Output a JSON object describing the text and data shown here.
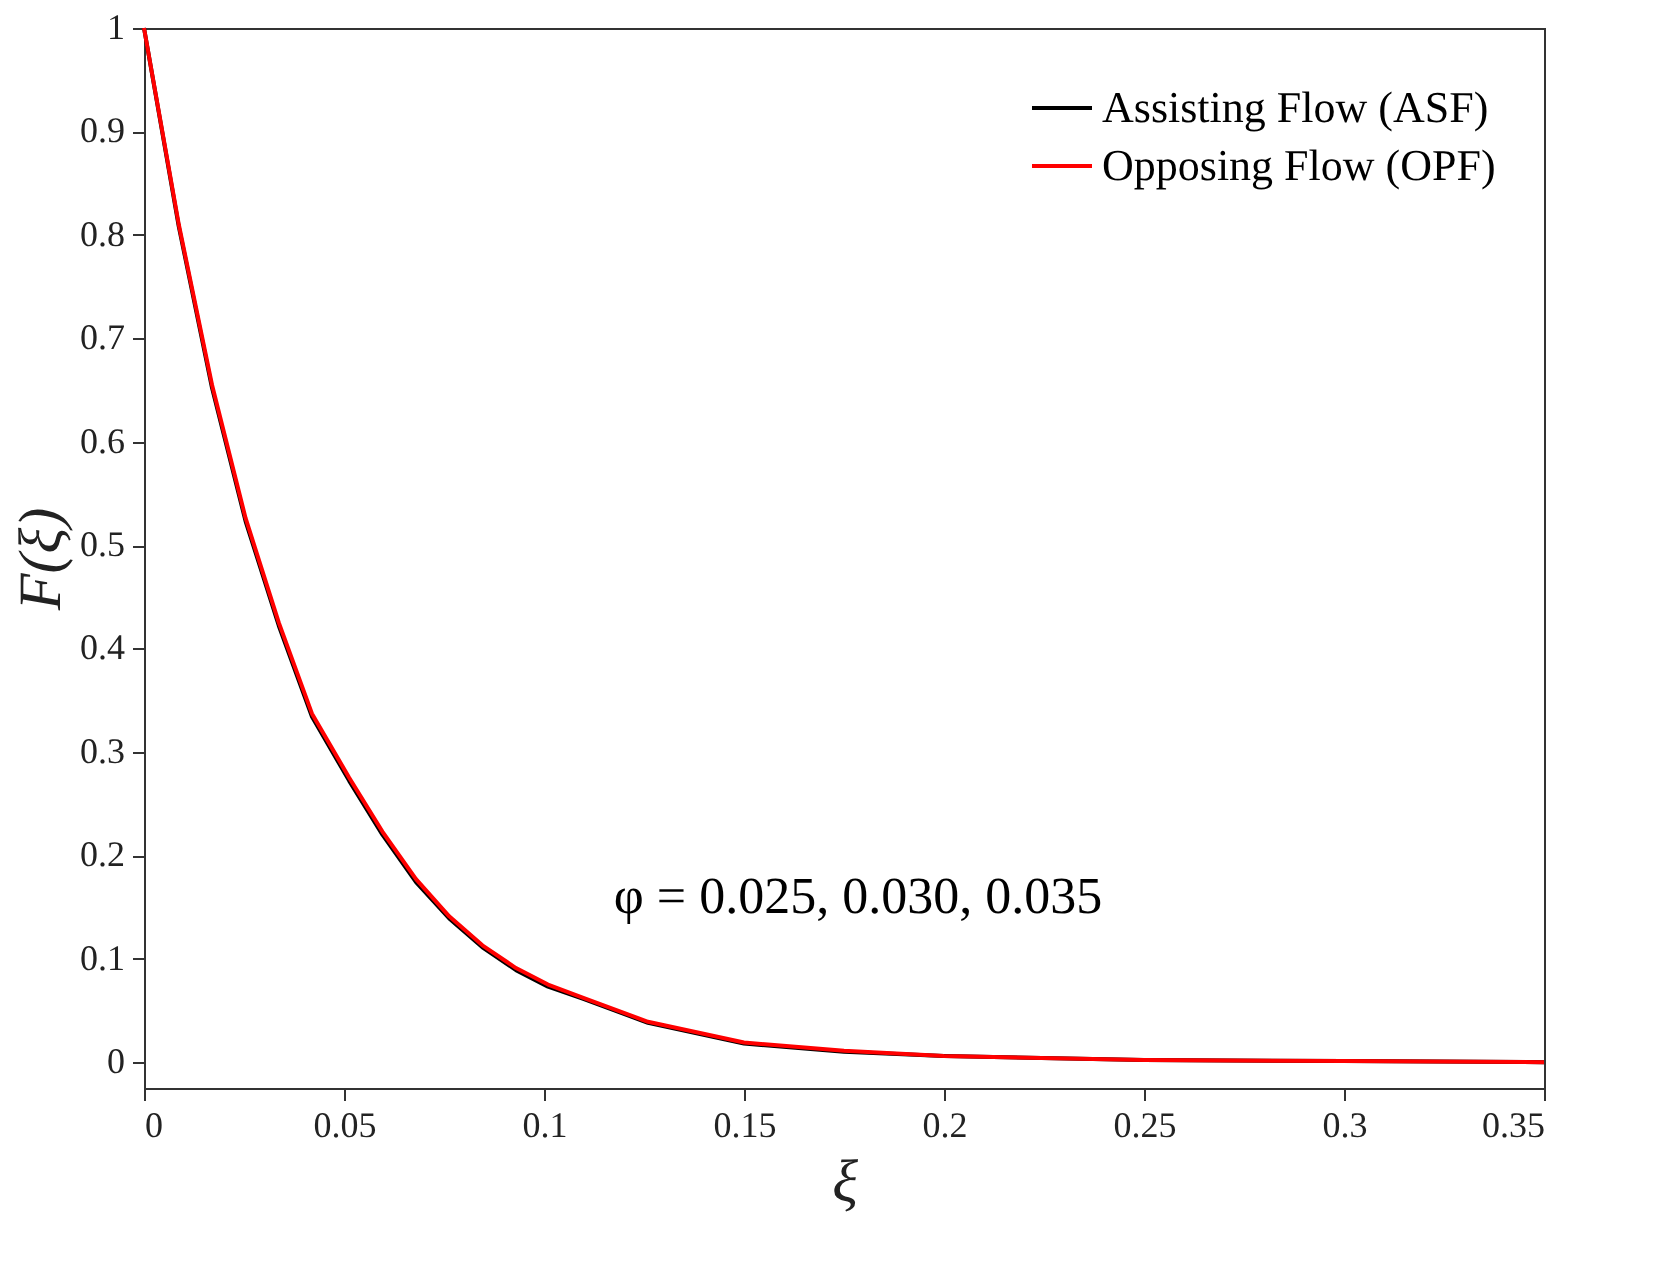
{
  "chart_data": {
    "type": "line",
    "xlabel": "ξ",
    "ylabel": "F(ξ)",
    "x": [
      0,
      0.0087,
      0.017,
      0.0254,
      0.0337,
      0.042,
      0.0513,
      0.0596,
      0.068,
      0.0763,
      0.0846,
      0.093,
      0.101,
      0.11,
      0.126,
      0.15,
      0.175,
      0.2,
      0.25,
      0.3,
      0.35
    ],
    "series": [
      {
        "name": "Assisting Flow (ASF)",
        "color": "#000000",
        "values": [
          1,
          0.808,
          0.652,
          0.523,
          0.422,
          0.334,
          0.272,
          0.22,
          0.174,
          0.139,
          0.111,
          0.089,
          0.073,
          0.061,
          0.038,
          0.018,
          0.01,
          0.006,
          0.002,
          0.001,
          0
        ]
      },
      {
        "name": "Opposing Flow (OPF)",
        "color": "#ff0000",
        "values": [
          1,
          0.81,
          0.655,
          0.526,
          0.425,
          0.337,
          0.275,
          0.223,
          0.177,
          0.141,
          0.113,
          0.091,
          0.075,
          0.062,
          0.039,
          0.019,
          0.011,
          0.006,
          0.002,
          0.001,
          0
        ]
      }
    ],
    "xlim": [
      0,
      0.35
    ],
    "xticks": [
      0,
      0.05,
      0.1,
      0.15,
      0.2,
      0.25,
      0.3,
      0.35
    ],
    "ylim": [
      -0.025,
      1
    ],
    "yticks": [
      0,
      0.1,
      0.2,
      0.3,
      0.4,
      0.5,
      0.6,
      0.7,
      0.8,
      0.9,
      1
    ],
    "annotations": [
      "φ = 0.025, 0.030, 0.035"
    ],
    "legend": "top right",
    "grid": false,
    "line_style": "solid",
    "marker": "none"
  }
}
